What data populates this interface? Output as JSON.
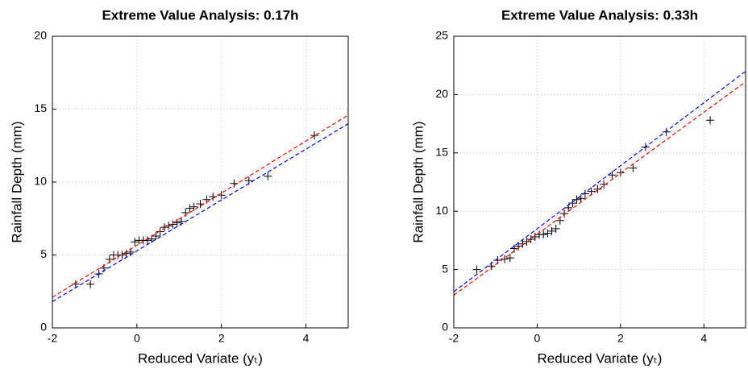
{
  "chart_data": [
    {
      "type": "scatter",
      "title": "Extreme Value Analysis: 0.17h",
      "xlabel": "Reduced Variate (yₜ)",
      "ylabel": "Rainfall Depth (mm)",
      "xlim": [
        -2,
        5
      ],
      "xticks": [
        -2,
        0,
        2,
        4
      ],
      "ylim": [
        0,
        20
      ],
      "yticks": [
        0,
        5,
        10,
        15,
        20
      ],
      "grid": true,
      "series": [
        {
          "color": "#000000",
          "marker": "+",
          "x": [
            -1.45,
            -1.1,
            -0.9,
            -0.78,
            -0.65,
            -0.55,
            -0.45,
            -0.35,
            -0.25,
            -0.15,
            -0.05,
            0.05,
            0.15,
            0.25,
            0.35,
            0.45,
            0.55,
            0.65,
            0.75,
            0.85,
            0.95,
            1.05,
            1.15,
            1.25,
            1.35,
            1.5,
            1.65,
            1.8,
            2.0,
            2.3,
            2.65,
            3.1,
            4.2
          ],
          "values": [
            3.0,
            3.0,
            3.7,
            4.1,
            4.7,
            5.0,
            5.0,
            5.0,
            5.1,
            5.2,
            5.9,
            6.0,
            6.0,
            6.0,
            6.1,
            6.3,
            6.6,
            6.9,
            7.0,
            7.1,
            7.2,
            7.3,
            7.9,
            8.2,
            8.3,
            8.5,
            8.8,
            9.0,
            9.1,
            9.9,
            10.1,
            10.4,
            13.2
          ]
        },
        {
          "color": "#ff0000",
          "line": "dashed",
          "x": [
            -2,
            5
          ],
          "values": [
            2.1,
            14.6
          ]
        },
        {
          "color": "#0000ff",
          "line": "dashed",
          "x": [
            -2,
            5
          ],
          "values": [
            1.8,
            14.0
          ]
        }
      ]
    },
    {
      "type": "scatter",
      "title": "Extreme Value Analysis: 0.33h",
      "xlabel": "Reduced Variate (yₜ)",
      "ylabel": "Rainfall Depth (mm)",
      "xlim": [
        -2,
        5
      ],
      "xticks": [
        -2,
        0,
        2,
        4
      ],
      "ylim": [
        0,
        25
      ],
      "yticks": [
        0,
        5,
        10,
        15,
        20,
        25
      ],
      "grid": true,
      "series": [
        {
          "color": "#000000",
          "marker": "+",
          "x": [
            -1.45,
            -1.1,
            -0.95,
            -0.78,
            -0.65,
            -0.55,
            -0.45,
            -0.35,
            -0.25,
            -0.15,
            -0.05,
            0.05,
            0.15,
            0.25,
            0.35,
            0.45,
            0.55,
            0.65,
            0.75,
            0.85,
            0.95,
            1.05,
            1.15,
            1.3,
            1.45,
            1.6,
            1.8,
            2.0,
            2.3,
            2.6,
            3.1,
            4.15
          ],
          "values": [
            5.0,
            5.3,
            5.8,
            5.9,
            6.0,
            6.8,
            7.0,
            7.2,
            7.4,
            7.6,
            7.8,
            8.0,
            8.0,
            8.1,
            8.3,
            8.5,
            9.2,
            9.8,
            10.3,
            10.7,
            11.0,
            11.1,
            11.5,
            11.7,
            11.9,
            12.3,
            13.1,
            13.3,
            13.7,
            15.5,
            16.8,
            17.8
          ]
        },
        {
          "color": "#ff0000",
          "line": "dashed",
          "x": [
            -2,
            5
          ],
          "values": [
            2.8,
            21.1
          ]
        },
        {
          "color": "#0000ff",
          "line": "dashed",
          "x": [
            -2,
            5
          ],
          "values": [
            3.1,
            22.0
          ]
        }
      ]
    }
  ]
}
